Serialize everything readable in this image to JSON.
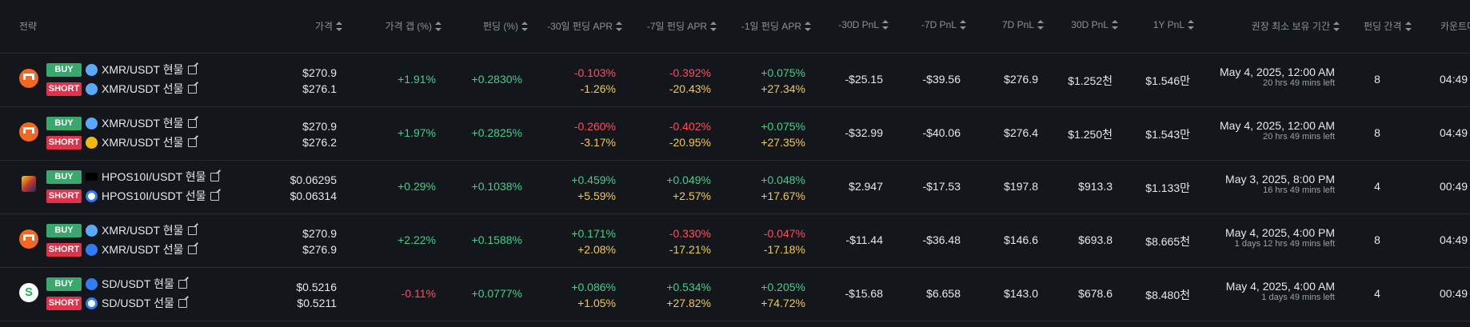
{
  "headers": {
    "strategy": "전략",
    "price": "가격",
    "gap": "가격 갭 (%)",
    "funding": "펀딩 (%)",
    "apr30": "-30일 펀딩 APR",
    "apr7": "-7일 펀딩 APR",
    "apr1": "-1일 펀딩 APR",
    "pnl30m": "-30D PnL",
    "pnl7m": "-7D PnL",
    "pnl7": "7D PnL",
    "pnl30": "30D PnL",
    "pnl1y": "1Y PnL",
    "hold": "권장 최소 보유 기간",
    "interval": "펀딩 간격",
    "countdown": "카운트다"
  },
  "rows": [
    {
      "coin_icon": "monero-icon",
      "buy_label": "BUY",
      "short_label": "SHORT",
      "spot_pair": "XMR/USDT 현물",
      "fut_pair": "XMR/USDT 선물",
      "spot_exchange_icon": "cloud-exchange-icon",
      "fut_exchange_icon": "cloud-exchange-icon",
      "price1": "$270.9",
      "price2": "$276.1",
      "gap": "+1.91%",
      "funding": "+0.2830%",
      "apr30a": "-0.103%",
      "apr30b": "-1.26%",
      "apr7a": "-0.392%",
      "apr7b": "-20.43%",
      "apr1a": "+0.075%",
      "apr1b": "+27.34%",
      "pnl30m": "-$25.15",
      "pnl7m": "-$39.56",
      "pnl7": "$276.9",
      "pnl30": "$1.252천",
      "pnl1y": "$1.546만",
      "hold_date": "May 4, 2025, 12:00 AM",
      "hold_left": "20 hrs 49 mins left",
      "interval": "8",
      "countdown": "04:49"
    },
    {
      "coin_icon": "monero-icon",
      "buy_label": "BUY",
      "short_label": "SHORT",
      "spot_pair": "XMR/USDT 현물",
      "fut_pair": "XMR/USDT 선물",
      "spot_exchange_icon": "cloud-exchange-icon",
      "fut_exchange_icon": "gold-exchange-icon",
      "price1": "$270.9",
      "price2": "$276.2",
      "gap": "+1.97%",
      "funding": "+0.2825%",
      "apr30a": "-0.260%",
      "apr30b": "-3.17%",
      "apr7a": "-0.402%",
      "apr7b": "-20.95%",
      "apr1a": "+0.075%",
      "apr1b": "+27.35%",
      "pnl30m": "-$32.99",
      "pnl7m": "-$40.06",
      "pnl7": "$276.4",
      "pnl30": "$1.250천",
      "pnl1y": "$1.543만",
      "hold_date": "May 4, 2025, 12:00 AM",
      "hold_left": "20 hrs 49 mins left",
      "interval": "8",
      "countdown": "04:49"
    },
    {
      "coin_icon": "hpos10i-icon",
      "buy_label": "BUY",
      "short_label": "SHORT",
      "spot_pair": "HPOS10I/USDT 현물",
      "fut_pair": "HPOS10I/USDT 선물",
      "spot_exchange_icon": "black-exchange-icon",
      "fut_exchange_icon": "ring-exchange-icon",
      "price1": "$0.06295",
      "price2": "$0.06314",
      "gap": "+0.29%",
      "funding": "+0.1038%",
      "apr30a": "+0.459%",
      "apr30b": "+5.59%",
      "apr7a": "+0.049%",
      "apr7b": "+2.57%",
      "apr1a": "+0.048%",
      "apr1b": "+17.67%",
      "pnl30m": "$2.947",
      "pnl7m": "-$17.53",
      "pnl7": "$197.8",
      "pnl30": "$913.3",
      "pnl1y": "$1.133만",
      "hold_date": "May 3, 2025, 8:00 PM",
      "hold_left": "16 hrs 49 mins left",
      "interval": "4",
      "countdown": "00:49"
    },
    {
      "coin_icon": "monero-icon",
      "buy_label": "BUY",
      "short_label": "SHORT",
      "spot_pair": "XMR/USDT 현물",
      "fut_pair": "XMR/USDT 선물",
      "spot_exchange_icon": "cloud-exchange-icon",
      "fut_exchange_icon": "drop-exchange-icon",
      "price1": "$270.9",
      "price2": "$276.9",
      "gap": "+2.22%",
      "funding": "+0.1588%",
      "apr30a": "+0.171%",
      "apr30b": "+2.08%",
      "apr7a": "-0.330%",
      "apr7b": "-17.21%",
      "apr1a": "-0.047%",
      "apr1b": "-17.18%",
      "pnl30m": "-$11.44",
      "pnl7m": "-$36.48",
      "pnl7": "$146.6",
      "pnl30": "$693.8",
      "pnl1y": "$8.665천",
      "hold_date": "May 4, 2025, 4:00 PM",
      "hold_left": "1 days 12 hrs 49 mins left",
      "interval": "8",
      "countdown": "04:49"
    },
    {
      "coin_icon": "sd-icon",
      "buy_label": "BUY",
      "short_label": "SHORT",
      "spot_pair": "SD/USDT 현물",
      "fut_pair": "SD/USDT 선물",
      "spot_exchange_icon": "drop-exchange-icon",
      "fut_exchange_icon": "ring-exchange-icon",
      "price1": "$0.5216",
      "price2": "$0.5211",
      "gap": "-0.11%",
      "funding": "+0.0777%",
      "apr30a": "+0.086%",
      "apr30b": "+1.05%",
      "apr7a": "+0.534%",
      "apr7b": "+27.82%",
      "apr1a": "+0.205%",
      "apr1b": "+74.72%",
      "pnl30m": "-$15.68",
      "pnl7m": "$6.658",
      "pnl7": "$143.0",
      "pnl30": "$678.6",
      "pnl1y": "$8.480천",
      "hold_date": "May 4, 2025, 4:00 AM",
      "hold_left": "1 days 49 mins left",
      "interval": "4",
      "countdown": "00:49"
    }
  ]
}
